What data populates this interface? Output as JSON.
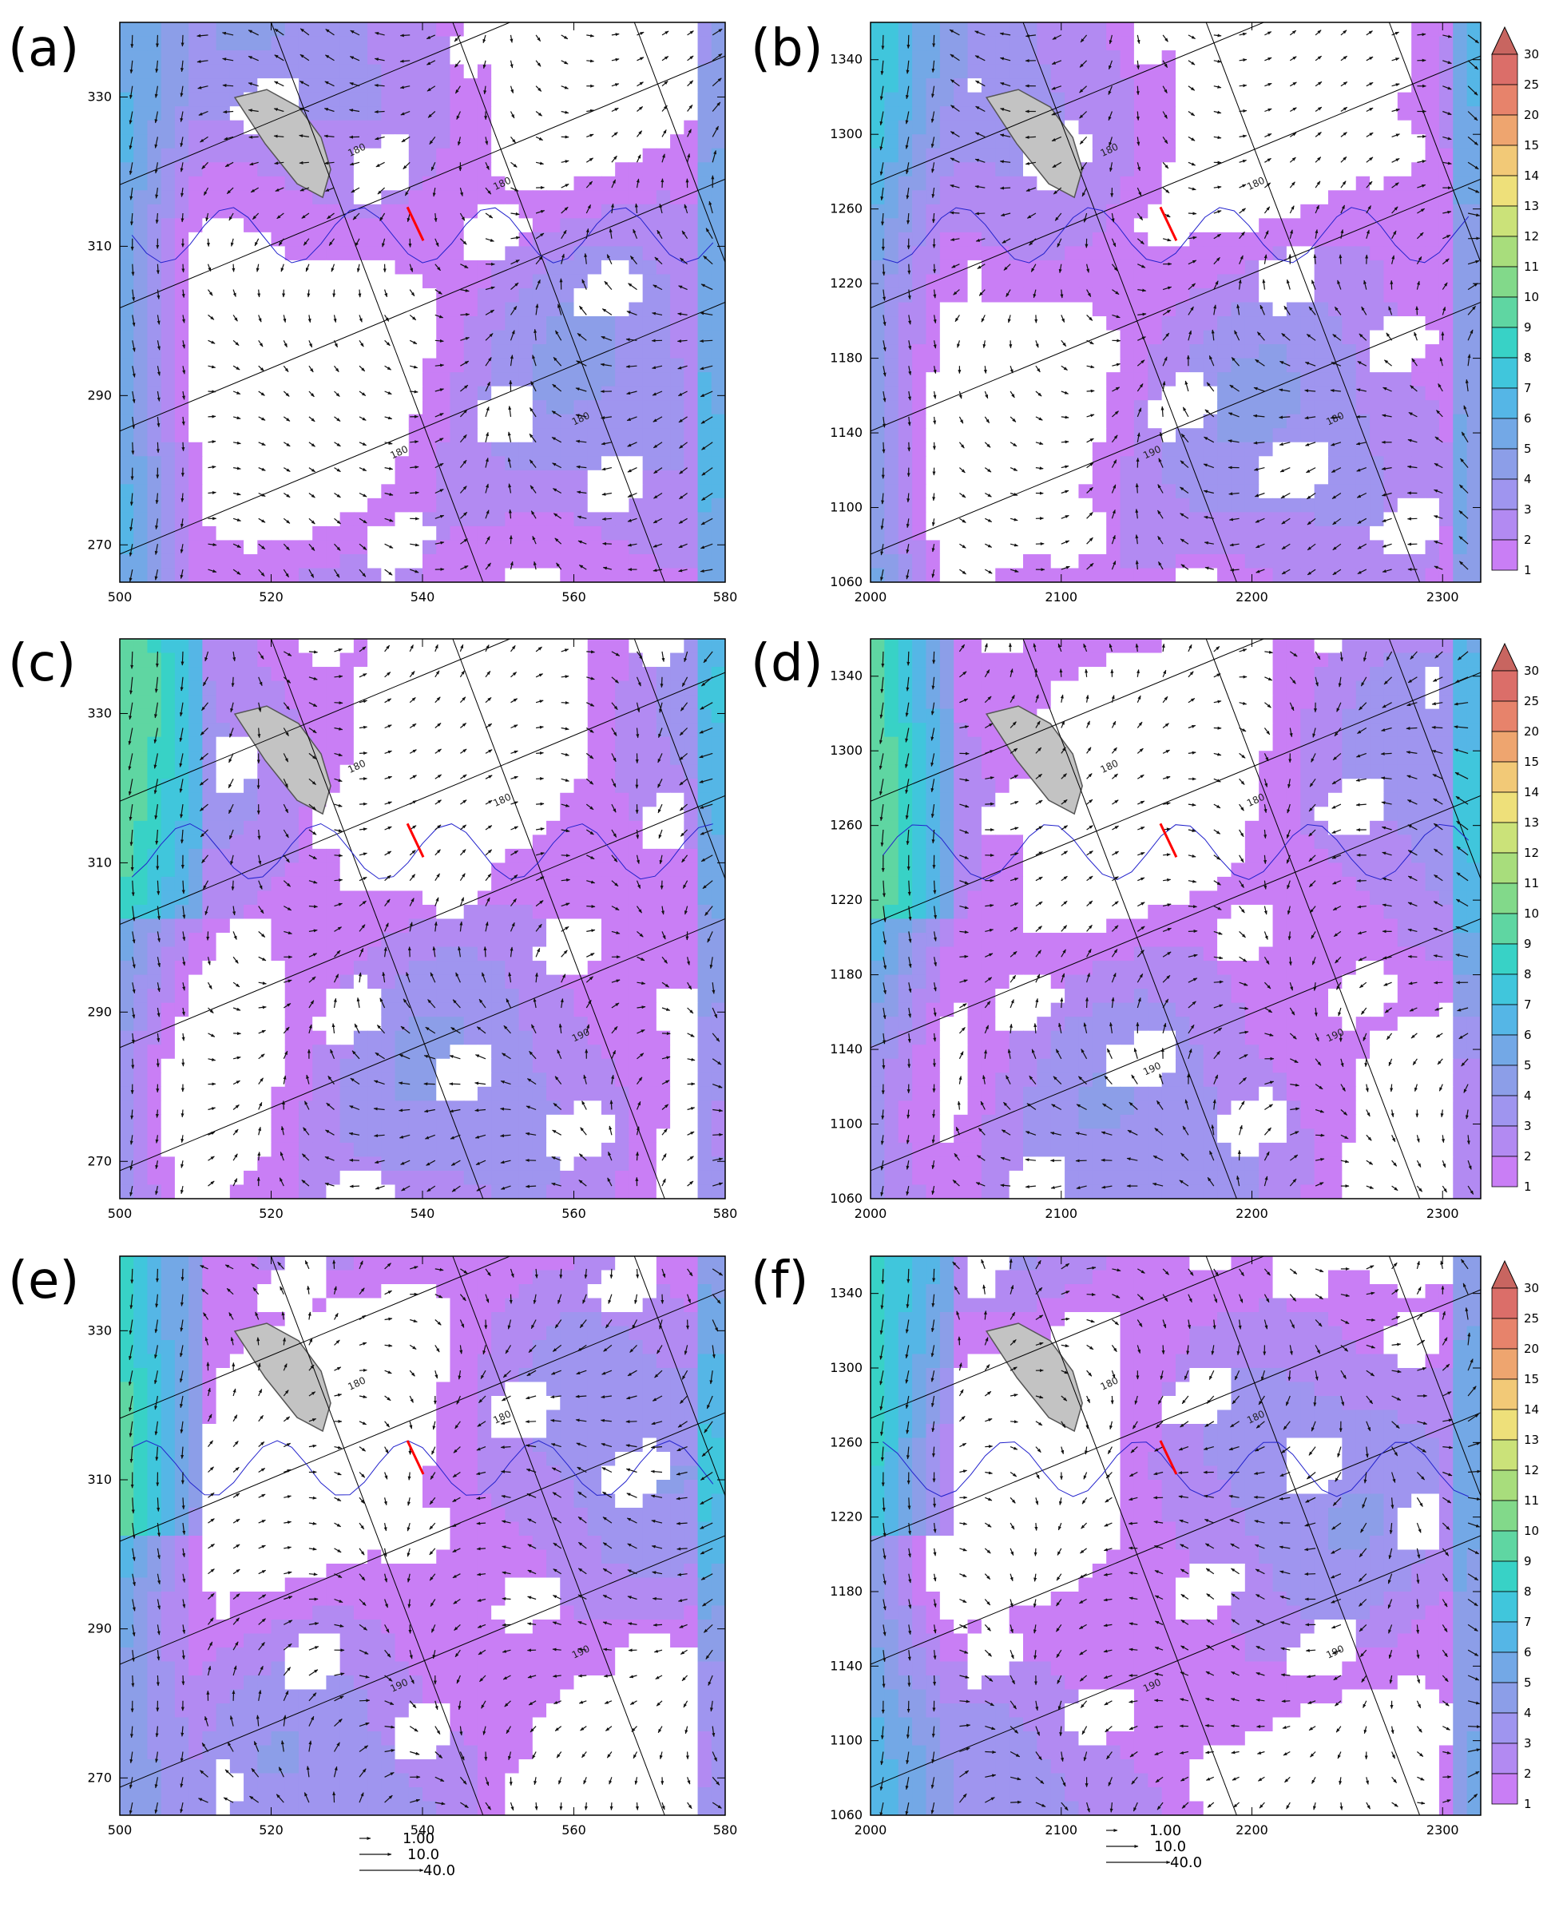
{
  "chart_data": [
    {
      "type": "heatmap",
      "panel_label": "(a)",
      "x_ticks": [
        500,
        520,
        540,
        560,
        580
      ],
      "y_ticks": [
        270,
        290,
        310,
        330
      ],
      "xlim": [
        500,
        580
      ],
      "ylim": [
        265,
        340
      ],
      "contour_labels": [
        "180",
        "180",
        "180",
        "180"
      ]
    },
    {
      "type": "heatmap",
      "panel_label": "(b)",
      "x_ticks": [
        2000,
        2100,
        2200,
        2300
      ],
      "y_ticks": [
        1060,
        1100,
        1140,
        1180,
        1220,
        1260,
        1300,
        1340
      ],
      "xlim": [
        2000,
        2320
      ],
      "ylim": [
        1060,
        1360
      ],
      "contour_labels": [
        "180",
        "180",
        "180",
        "190"
      ]
    },
    {
      "type": "heatmap",
      "panel_label": "(c)",
      "x_ticks": [
        500,
        520,
        540,
        560,
        580
      ],
      "y_ticks": [
        270,
        290,
        310,
        330
      ],
      "xlim": [
        500,
        580
      ],
      "ylim": [
        265,
        340
      ],
      "contour_labels": [
        "180",
        "180",
        "190"
      ]
    },
    {
      "type": "heatmap",
      "panel_label": "(d)",
      "x_ticks": [
        2000,
        2100,
        2200,
        2300
      ],
      "y_ticks": [
        1060,
        1100,
        1140,
        1180,
        1220,
        1260,
        1300,
        1340
      ],
      "xlim": [
        2000,
        2320
      ],
      "ylim": [
        1060,
        1360
      ],
      "contour_labels": [
        "180",
        "180",
        "190",
        "190"
      ]
    },
    {
      "type": "heatmap",
      "panel_label": "(e)",
      "x_ticks": [
        500,
        520,
        540,
        560,
        580
      ],
      "y_ticks": [
        270,
        290,
        310,
        330
      ],
      "xlim": [
        500,
        580
      ],
      "ylim": [
        265,
        340
      ],
      "contour_labels": [
        "180",
        "180",
        "190",
        "190"
      ]
    },
    {
      "type": "heatmap",
      "panel_label": "(f)",
      "x_ticks": [
        2000,
        2100,
        2200,
        2300
      ],
      "y_ticks": [
        1060,
        1100,
        1140,
        1180,
        1220,
        1260,
        1300,
        1340
      ],
      "xlim": [
        2000,
        2320
      ],
      "ylim": [
        1060,
        1360
      ],
      "contour_labels": [
        "180",
        "180",
        "190",
        "190"
      ]
    }
  ],
  "colorbar": {
    "levels": [
      "1",
      "2",
      "3",
      "4",
      "5",
      "6",
      "7",
      "8",
      "9",
      "10",
      "11",
      "12",
      "13",
      "14",
      "15",
      "20",
      "25",
      "30"
    ],
    "colors": [
      "#c97ef5",
      "#b28af2",
      "#9f95ef",
      "#8c9ee8",
      "#73a8e6",
      "#55b6e6",
      "#40c6dc",
      "#38d2c6",
      "#5fd6a2",
      "#82d98a",
      "#a8dd7c",
      "#cbe279",
      "#eee07a",
      "#f2c977",
      "#eea56f",
      "#e7836b",
      "#db6e69",
      "#c86560"
    ]
  },
  "reference_vectors": [
    "1.00",
    "10.0",
    "40.0"
  ],
  "colors": {
    "land": "#c3c3c3",
    "section_line": "#ff0000",
    "contour": "#2222cc",
    "arrow": "#111111"
  }
}
